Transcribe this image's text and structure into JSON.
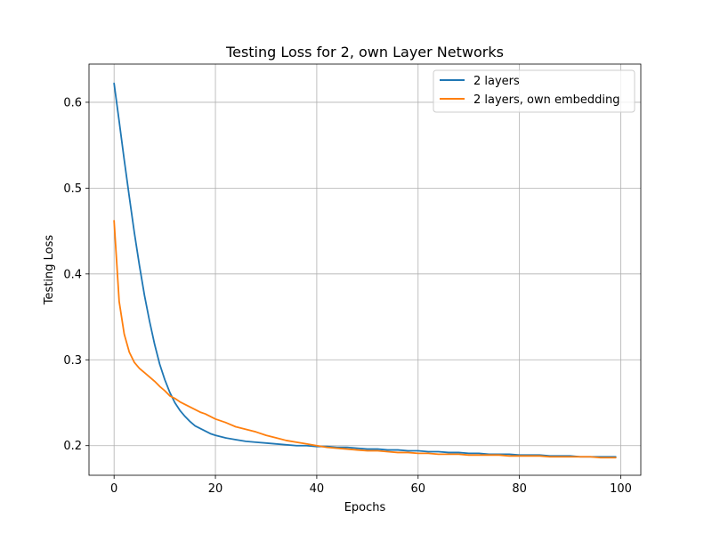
{
  "chart_data": {
    "type": "line",
    "title": "Testing Loss for 2, own Layer Networks",
    "xlabel": "Epochs",
    "ylabel": "Testing Loss",
    "xlim": [
      -4.95,
      103.95
    ],
    "ylim": [
      0.1655,
      0.6445
    ],
    "xticks": [
      0,
      20,
      40,
      60,
      80,
      100
    ],
    "yticks": [
      0.2,
      0.3,
      0.4,
      0.5,
      0.6
    ],
    "xtick_labels": [
      "0",
      "20",
      "40",
      "60",
      "80",
      "100"
    ],
    "ytick_labels": [
      "0.2",
      "0.3",
      "0.4",
      "0.5",
      "0.6"
    ],
    "grid": true,
    "legend_position": "upper right",
    "series": [
      {
        "name": "2 layers",
        "color": "#1f77b4",
        "x": [
          0,
          1,
          2,
          3,
          4,
          5,
          6,
          7,
          8,
          9,
          10,
          11,
          12,
          13,
          14,
          15,
          16,
          17,
          18,
          19,
          20,
          22,
          24,
          26,
          28,
          30,
          32,
          34,
          36,
          38,
          40,
          42,
          44,
          46,
          48,
          50,
          52,
          54,
          56,
          58,
          60,
          62,
          64,
          66,
          68,
          70,
          72,
          74,
          76,
          78,
          80,
          82,
          84,
          86,
          88,
          90,
          92,
          94,
          96,
          98,
          99
        ],
        "values": [
          0.622,
          0.578,
          0.533,
          0.49,
          0.448,
          0.41,
          0.375,
          0.345,
          0.318,
          0.295,
          0.277,
          0.262,
          0.25,
          0.241,
          0.234,
          0.228,
          0.223,
          0.22,
          0.217,
          0.214,
          0.212,
          0.209,
          0.207,
          0.205,
          0.204,
          0.203,
          0.202,
          0.201,
          0.2,
          0.2,
          0.199,
          0.199,
          0.198,
          0.198,
          0.197,
          0.196,
          0.196,
          0.195,
          0.195,
          0.194,
          0.194,
          0.193,
          0.193,
          0.192,
          0.192,
          0.191,
          0.191,
          0.19,
          0.19,
          0.19,
          0.189,
          0.189,
          0.189,
          0.188,
          0.188,
          0.188,
          0.187,
          0.187,
          0.187,
          0.187,
          0.187
        ]
      },
      {
        "name": "2 layers, own embedding",
        "color": "#ff7f0e",
        "x": [
          0,
          1,
          2,
          3,
          4,
          5,
          6,
          7,
          8,
          9,
          10,
          11,
          12,
          13,
          14,
          15,
          16,
          17,
          18,
          19,
          20,
          22,
          24,
          26,
          28,
          30,
          32,
          34,
          36,
          38,
          40,
          42,
          44,
          46,
          48,
          50,
          52,
          54,
          56,
          58,
          60,
          62,
          64,
          66,
          68,
          70,
          72,
          74,
          76,
          78,
          80,
          82,
          84,
          86,
          88,
          90,
          92,
          94,
          96,
          98,
          99
        ],
        "values": [
          0.462,
          0.368,
          0.33,
          0.309,
          0.297,
          0.29,
          0.285,
          0.28,
          0.275,
          0.269,
          0.264,
          0.258,
          0.255,
          0.251,
          0.248,
          0.245,
          0.242,
          0.239,
          0.237,
          0.234,
          0.231,
          0.227,
          0.222,
          0.219,
          0.216,
          0.212,
          0.209,
          0.206,
          0.204,
          0.202,
          0.2,
          0.198,
          0.197,
          0.196,
          0.195,
          0.194,
          0.194,
          0.193,
          0.192,
          0.192,
          0.191,
          0.191,
          0.19,
          0.19,
          0.19,
          0.189,
          0.189,
          0.189,
          0.189,
          0.188,
          0.188,
          0.188,
          0.188,
          0.187,
          0.187,
          0.187,
          0.187,
          0.187,
          0.186,
          0.186,
          0.186
        ]
      }
    ]
  }
}
